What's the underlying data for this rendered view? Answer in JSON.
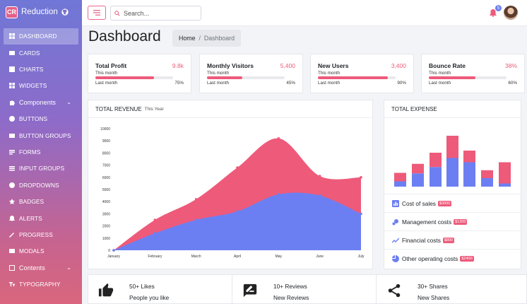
{
  "brand": {
    "name": "Reduction",
    "logo_text": "CR"
  },
  "sidebar": {
    "items": [
      {
        "label": "DASHBOARD",
        "icon": "dashboard-icon",
        "active": true
      },
      {
        "label": "CARDS",
        "icon": "cards-icon"
      },
      {
        "label": "CHARTS",
        "icon": "charts-icon"
      },
      {
        "label": "WIDGETS",
        "icon": "widgets-icon"
      },
      {
        "label": "Components",
        "icon": "puzzle-icon",
        "group": true
      },
      {
        "label": "BUTTONS",
        "icon": "buttons-icon"
      },
      {
        "label": "BUTTON GROUPS",
        "icon": "button-groups-icon"
      },
      {
        "label": "FORMS",
        "icon": "forms-icon"
      },
      {
        "label": "INPUT GROUPS",
        "icon": "input-groups-icon"
      },
      {
        "label": "DROPDOWNS",
        "icon": "dropdowns-icon"
      },
      {
        "label": "BADGES",
        "icon": "star-icon"
      },
      {
        "label": "ALERTS",
        "icon": "alerts-icon"
      },
      {
        "label": "PROGRESS",
        "icon": "progress-icon"
      },
      {
        "label": "MODALS",
        "icon": "modals-icon"
      },
      {
        "label": "Contents",
        "icon": "contents-icon",
        "group": true
      },
      {
        "label": "TYPOGRAPHY",
        "icon": "typography-icon"
      }
    ]
  },
  "topbar": {
    "search_placeholder": "Search...",
    "notification_count": "5"
  },
  "header": {
    "title": "Dashboard",
    "breadcrumb": {
      "home": "Home",
      "current": "Dashboard"
    }
  },
  "stats": [
    {
      "title": "Total Profit",
      "value": "9.8k",
      "period": "This month",
      "progress": 75,
      "footer_label": "Last month",
      "footer_value": "75%"
    },
    {
      "title": "Monthly Visitors",
      "value": "5,400",
      "period": "This month",
      "progress": 45,
      "footer_label": "Last month",
      "footer_value": "45%"
    },
    {
      "title": "New Users",
      "value": "3,400",
      "period": "This month",
      "progress": 90,
      "footer_label": "Last month",
      "footer_value": "90%"
    },
    {
      "title": "Bounce Rate",
      "value": "38%",
      "period": "This month",
      "progress": 60,
      "footer_label": "Last month",
      "footer_value": "60%"
    }
  ],
  "revenue": {
    "title": "TOTAL REVENUE",
    "subtitle": "This Year"
  },
  "expense": {
    "title": "TOTAL EXPENSE",
    "items": [
      {
        "label": "Cost of sales",
        "amount": "$3000",
        "icon": "bar-chart-icon"
      },
      {
        "label": "Management costs",
        "amount": "$1200",
        "icon": "bubbles-icon"
      },
      {
        "label": "Financial costs",
        "amount": "$800",
        "icon": "line-trend-icon"
      },
      {
        "label": "Other operating costs",
        "amount": "$2400",
        "icon": "pie-chart-icon"
      }
    ]
  },
  "social": [
    {
      "count": "50+ Likes",
      "label": "People you like",
      "icon": "thumbs-up-icon"
    },
    {
      "count": "10+ Reviews",
      "label": "New Reviews",
      "icon": "review-icon"
    },
    {
      "count": "30+ Shares",
      "label": "New Shares",
      "icon": "share-icon"
    }
  ],
  "colors": {
    "accent": "#ee5a7a",
    "secondary": "#6c7ff2"
  },
  "chart_data": [
    {
      "type": "area",
      "categories": [
        "January",
        "February",
        "March",
        "April",
        "May",
        "June",
        "July"
      ],
      "ylim": [
        0,
        10000
      ],
      "yticks": [
        0,
        1000,
        2000,
        3000,
        4000,
        5000,
        6000,
        7000,
        8000,
        9000,
        10000
      ],
      "series": [
        {
          "values": [
            0,
            1400,
            2500,
            3200,
            4600,
            4500,
            3000
          ],
          "color": "#6c7ff2"
        },
        {
          "values": [
            0,
            1100,
            1700,
            3600,
            4600,
            1600,
            3000
          ],
          "color": "#ee5a7a"
        }
      ],
      "grid": false
    },
    {
      "type": "bar",
      "stacked": true,
      "categories": [
        "1",
        "2",
        "3",
        "4",
        "5",
        "6",
        "7"
      ],
      "series": [
        {
          "values": [
            1.0,
            2.5,
            3.7,
            5.4,
            4.6,
            1.6,
            0.6
          ],
          "color": "#6c7ff2"
        },
        {
          "values": [
            1.6,
            1.8,
            2.7,
            4.2,
            2.2,
            1.5,
            4.0
          ],
          "color": "#ee5a7a"
        }
      ]
    }
  ]
}
